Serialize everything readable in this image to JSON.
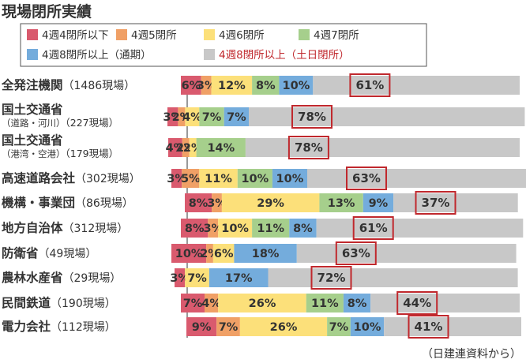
{
  "chart_data": {
    "type": "bar",
    "stacked": true,
    "orientation": "horizontal",
    "title": "現場閉所実績",
    "source": "（日建連資料から）",
    "legend": [
      {
        "name": "4週4閉所以下",
        "color": "#d95a6e"
      },
      {
        "name": "4週5閉所",
        "color": "#f0a066"
      },
      {
        "name": "4週6閉所",
        "color": "#fce07a"
      },
      {
        "name": "4週7閉所",
        "color": "#a6cf8c"
      },
      {
        "name": "4週8閉所以上（通期）",
        "color": "#74acdc"
      },
      {
        "name": "4週8閉所以上（土日閉所）",
        "color": "#c8c8c8",
        "text_color": "#c0282d"
      }
    ],
    "categories": [
      {
        "name": "全発注機関",
        "paren": "（1486現場）",
        "sub": ""
      },
      {
        "name": "国土交通省",
        "paren": "（227現場）",
        "sub": "（道路・河川）"
      },
      {
        "name": "国土交通省",
        "paren": "（179現場）",
        "sub": "（港湾・空港）"
      },
      {
        "name": "高速道路会社",
        "paren": "（302現場）",
        "sub": ""
      },
      {
        "name": "機構・事業団",
        "paren": "（86現場）",
        "sub": ""
      },
      {
        "name": "地方自治体",
        "paren": "（312現場）",
        "sub": ""
      },
      {
        "name": "防衛省",
        "paren": "（49現場）",
        "sub": ""
      },
      {
        "name": "農林水産省",
        "paren": "（29現場）",
        "sub": ""
      },
      {
        "name": "民間鉄道",
        "paren": "（190現場）",
        "sub": ""
      },
      {
        "name": "電力会社",
        "paren": "（112現場）",
        "sub": ""
      }
    ],
    "series": [
      {
        "name": "4週4閉所以下",
        "values": [
          6,
          3,
          4,
          3,
          8,
          8,
          10,
          3,
          7,
          9
        ]
      },
      {
        "name": "4週5閉所",
        "values": [
          3,
          2,
          2,
          5,
          3,
          3,
          2,
          0,
          4,
          7
        ]
      },
      {
        "name": "4週6閉所",
        "values": [
          12,
          4,
          2,
          11,
          29,
          10,
          6,
          7,
          26,
          26
        ]
      },
      {
        "name": "4週7閉所",
        "values": [
          8,
          7,
          14,
          10,
          13,
          11,
          0,
          0,
          11,
          7
        ]
      },
      {
        "name": "4週8閉所以上（通期）",
        "values": [
          10,
          7,
          0,
          10,
          9,
          8,
          18,
          17,
          8,
          10
        ]
      },
      {
        "name": "4週8閉所以上（土日閉所）",
        "values": [
          61,
          78,
          78,
          63,
          37,
          61,
          63,
          72,
          44,
          41
        ]
      }
    ],
    "segment_labels": [
      [
        "6%",
        "3%",
        "12%",
        "8%",
        "10%"
      ],
      [
        "3%",
        "2%",
        "4%",
        "7%",
        "7%"
      ],
      [
        "4%",
        "2%",
        "2%",
        "14%",
        ""
      ],
      [
        "3%",
        "5%",
        "11%",
        "10%",
        "10%"
      ],
      [
        "8%",
        "3%",
        "29%",
        "13%",
        "9%"
      ],
      [
        "8%",
        "3%",
        "10%",
        "11%",
        "8%"
      ],
      [
        "10%",
        "2%",
        "6%",
        "",
        "18%"
      ],
      [
        "3%",
        "",
        "7%",
        "",
        "17%"
      ],
      [
        "7%",
        "4%",
        "26%",
        "11%",
        "8%"
      ],
      [
        "9%",
        "7%",
        "26%",
        "7%",
        "10%"
      ]
    ],
    "unit": "%",
    "xlim": [
      0,
      100
    ]
  }
}
